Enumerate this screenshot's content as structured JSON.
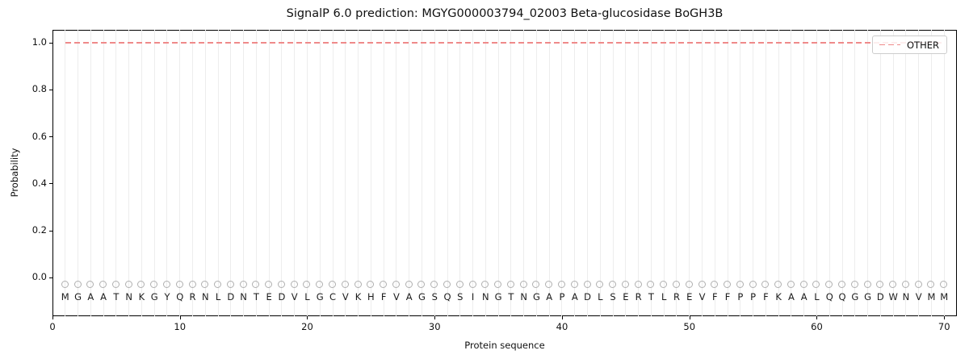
{
  "chart_data": {
    "type": "line",
    "title": "SignalP 6.0 prediction: MGYG000003794_02003 Beta-glucosidase BoGH3B",
    "xlabel": "Protein sequence",
    "ylabel": "Probability",
    "xlim": [
      0,
      71
    ],
    "ylim": [
      -0.165,
      1.054
    ],
    "x_ticks": [
      0,
      10,
      20,
      30,
      40,
      50,
      60,
      70
    ],
    "y_ticks": [
      "0.0",
      "0.2",
      "0.4",
      "0.6",
      "0.8",
      "1.0"
    ],
    "grid": {
      "vertical_per_residue": true,
      "horizontal": false,
      "color": "#ededed"
    },
    "legend": {
      "position": "upper right",
      "entries": [
        {
          "label": "OTHER",
          "color": "#ef8a8a",
          "line_style": "dashed"
        }
      ]
    },
    "series": [
      {
        "name": "OTHER",
        "style": "dashed",
        "color": "#ef8a8a",
        "x": [
          1,
          2,
          3,
          4,
          5,
          6,
          7,
          8,
          9,
          10,
          11,
          12,
          13,
          14,
          15,
          16,
          17,
          18,
          19,
          20,
          21,
          22,
          23,
          24,
          25,
          26,
          27,
          28,
          29,
          30,
          31,
          32,
          33,
          34,
          35,
          36,
          37,
          38,
          39,
          40,
          41,
          42,
          43,
          44,
          45,
          46,
          47,
          48,
          49,
          50,
          51,
          52,
          53,
          54,
          55,
          56,
          57,
          58,
          59,
          60,
          61,
          62,
          63,
          64,
          65,
          66,
          67,
          68,
          69,
          70
        ],
        "y": [
          1,
          1,
          1,
          1,
          1,
          1,
          1,
          1,
          1,
          1,
          1,
          1,
          1,
          1,
          1,
          1,
          1,
          1,
          1,
          1,
          1,
          1,
          1,
          1,
          1,
          1,
          1,
          1,
          1,
          1,
          1,
          1,
          1,
          1,
          1,
          1,
          1,
          1,
          1,
          1,
          1,
          1,
          1,
          1,
          1,
          1,
          1,
          1,
          1,
          1,
          1,
          1,
          1,
          1,
          1,
          1,
          1,
          1,
          1,
          1,
          1,
          1,
          1,
          1,
          1,
          1,
          1,
          1,
          1,
          1
        ]
      }
    ],
    "sequence": "MGAATNKGYQRNLDNTEDVLGCVKHFVAGSQSINGTNGAPADLSERTLREVFFPPFKAALQQGGDWNVMM",
    "residue_markers": {
      "shape": "open-circle",
      "color": "#b0b0b0",
      "y": -0.03
    },
    "residue_letters_y": -0.086
  },
  "colors": {
    "other_line": "#ef8a8a",
    "grid": "#ededed",
    "marker": "#b0b0b0",
    "frame": "#000000",
    "background": "#ffffff"
  }
}
